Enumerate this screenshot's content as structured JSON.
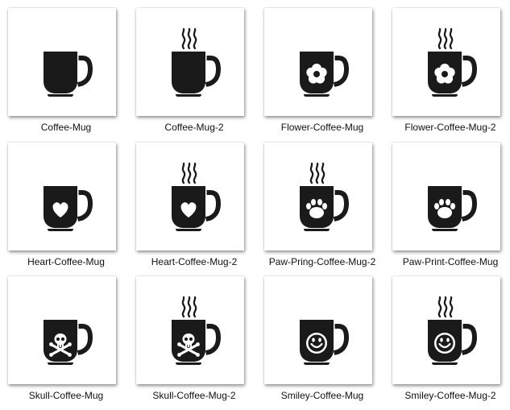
{
  "colors": {
    "mug": "#1a1a1a",
    "background": "#ffffff",
    "label": "#111111"
  },
  "files": [
    {
      "name": "Coffee-Mug",
      "steam": false,
      "emblem": "none"
    },
    {
      "name": "Coffee-Mug-2",
      "steam": true,
      "emblem": "none"
    },
    {
      "name": "Flower-Coffee-Mug",
      "steam": false,
      "emblem": "flower"
    },
    {
      "name": "Flower-Coffee-Mug-2",
      "steam": true,
      "emblem": "flower"
    },
    {
      "name": "Heart-Coffee-Mug",
      "steam": false,
      "emblem": "heart"
    },
    {
      "name": "Heart-Coffee-Mug-2",
      "steam": true,
      "emblem": "heart"
    },
    {
      "name": "Paw-Pring-Coffee-Mug-2",
      "steam": true,
      "emblem": "paw"
    },
    {
      "name": "Paw-Print-Coffee-Mug",
      "steam": false,
      "emblem": "paw"
    },
    {
      "name": "Skull-Coffee-Mug",
      "steam": false,
      "emblem": "skull"
    },
    {
      "name": "Skull-Coffee-Mug-2",
      "steam": true,
      "emblem": "skull"
    },
    {
      "name": "Smiley-Coffee-Mug",
      "steam": false,
      "emblem": "smiley"
    },
    {
      "name": "Smiley-Coffee-Mug-2",
      "steam": true,
      "emblem": "smiley"
    }
  ]
}
